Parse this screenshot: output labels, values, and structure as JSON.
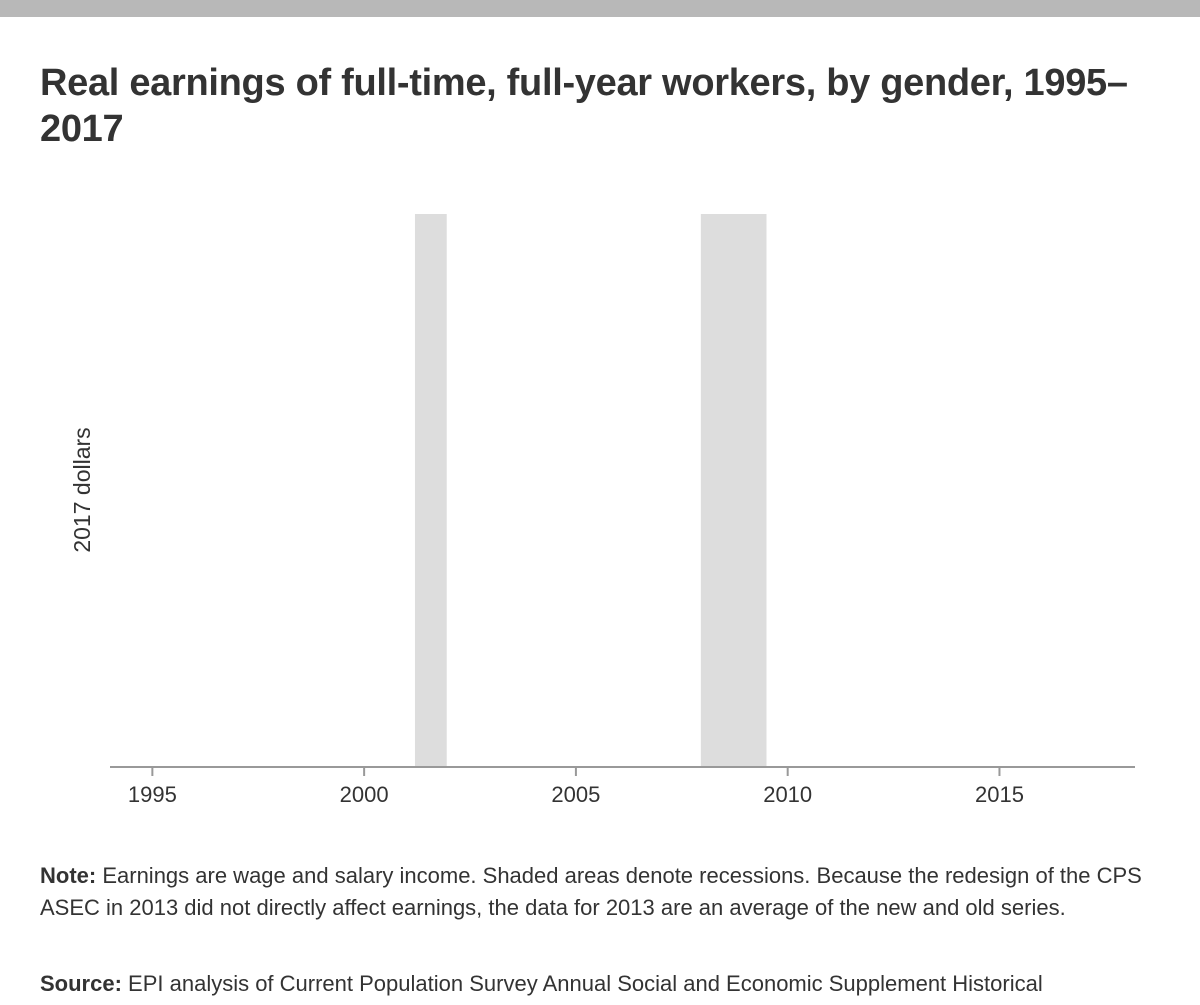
{
  "header": {
    "title": "Real earnings of full-time, full-year workers, by gender, 1995–2017"
  },
  "chart_data": {
    "type": "line",
    "title": "Real earnings of full-time, full-year workers, by gender, 1995–2017",
    "xlabel": "",
    "ylabel": "2017 dollars",
    "xlim": [
      1994,
      2018.2
    ],
    "x_ticks": [
      1995,
      2000,
      2005,
      2010,
      2015
    ],
    "x_tick_labels": [
      "1995",
      "2000",
      "2005",
      "2010",
      "2015"
    ],
    "series": [],
    "recessions": [
      {
        "start": 2001.2,
        "end": 2001.95
      },
      {
        "start": 2007.95,
        "end": 2009.5
      }
    ],
    "grid": false,
    "colors": {
      "recession": "#dddddd",
      "axis": "#999999",
      "text": "#333333"
    }
  },
  "footer": {
    "note_label": "Note:",
    "note_text": " Earnings are wage and salary income. Shaded areas denote recessions. Because the redesign of the CPS ASEC in 2013 did not directly affect earnings, the data for 2013 are an average of the new and old series.",
    "source_label": "Source:",
    "source_text": " EPI analysis of Current Population Survey Annual Social and Economic Supplement Historical"
  }
}
